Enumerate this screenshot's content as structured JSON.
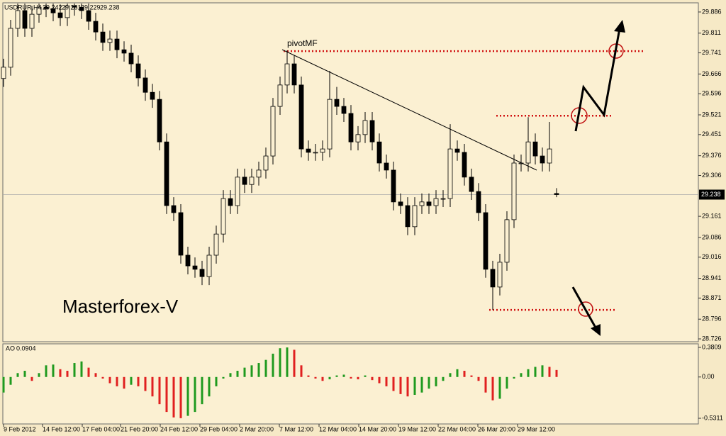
{
  "chart_data": {
    "type": "candlestick",
    "symbol": "USDRUR,H4",
    "annotation": "Masterforex-V",
    "pivot_label": "pivotMF",
    "colors": {
      "background": "#fbf0d2",
      "candle": "#000000",
      "level": "#d01010",
      "annotation": "#b01212",
      "pivot": "#1e9a1e"
    },
    "open": [
      29.65,
      29.69,
      29.828,
      29.891,
      29.828,
      29.878,
      29.903,
      29.898,
      29.883,
      29.866,
      29.908,
      29.903,
      29.891,
      29.853,
      29.815,
      29.778,
      29.79,
      29.752,
      29.74,
      29.702,
      29.652,
      29.601,
      29.576,
      29.425,
      29.199,
      29.174,
      29.023,
      28.985,
      28.973,
      28.947,
      29.023,
      29.098,
      29.224,
      29.199,
      29.3,
      29.274,
      29.3,
      29.325,
      29.375,
      29.551,
      29.627,
      29.702,
      29.627,
      29.4,
      29.388,
      29.388,
      29.4,
      29.576,
      29.551,
      29.526,
      29.425,
      29.451,
      29.501,
      29.425,
      29.35,
      29.325,
      29.212,
      29.199,
      29.124,
      29.199,
      29.212,
      29.199,
      29.224,
      29.224,
      29.4,
      29.388,
      29.3,
      29.249,
      29.174,
      28.973,
      28.91,
      28.998,
      29.149,
      29.35,
      29.35,
      29.425,
      29.375,
      29.35,
      29.242
    ],
    "high": [
      29.72,
      29.858,
      29.921,
      29.921,
      29.908,
      29.933,
      29.933,
      29.928,
      29.913,
      29.938,
      29.938,
      29.933,
      29.921,
      29.883,
      29.845,
      29.82,
      29.82,
      29.782,
      29.77,
      29.732,
      29.682,
      29.631,
      29.606,
      29.455,
      29.229,
      29.204,
      29.053,
      29.015,
      29.003,
      29.053,
      29.128,
      29.254,
      29.254,
      29.33,
      29.33,
      29.33,
      29.355,
      29.405,
      29.581,
      29.657,
      29.75,
      29.732,
      29.657,
      29.43,
      29.418,
      29.43,
      29.677,
      29.62,
      29.581,
      29.556,
      29.481,
      29.531,
      29.531,
      29.455,
      29.38,
      29.355,
      29.242,
      29.229,
      29.229,
      29.242,
      29.242,
      29.254,
      29.254,
      29.488,
      29.43,
      29.418,
      29.33,
      29.279,
      29.204,
      29.003,
      29.028,
      29.179,
      29.38,
      29.38,
      29.513,
      29.455,
      29.405,
      29.496,
      29.261
    ],
    "low": [
      29.62,
      29.66,
      29.798,
      29.798,
      29.798,
      29.848,
      29.868,
      29.853,
      29.836,
      29.836,
      29.873,
      29.861,
      29.823,
      29.785,
      29.748,
      29.748,
      29.722,
      29.71,
      29.672,
      29.622,
      29.571,
      29.546,
      29.395,
      29.169,
      29.144,
      28.993,
      28.955,
      28.943,
      28.917,
      28.917,
      28.993,
      29.068,
      29.169,
      29.169,
      29.244,
      29.244,
      29.27,
      29.295,
      29.345,
      29.521,
      29.597,
      29.597,
      29.37,
      29.358,
      29.358,
      29.358,
      29.37,
      29.521,
      29.496,
      29.395,
      29.395,
      29.421,
      29.395,
      29.32,
      29.295,
      29.182,
      29.169,
      29.094,
      29.094,
      29.169,
      29.169,
      29.169,
      29.194,
      29.194,
      29.358,
      29.27,
      29.219,
      29.144,
      28.943,
      28.829,
      28.88,
      28.968,
      29.119,
      29.32,
      29.32,
      29.345,
      29.32,
      29.32,
      29.229
    ],
    "close": [
      29.69,
      29.828,
      29.891,
      29.828,
      29.878,
      29.903,
      29.898,
      29.883,
      29.866,
      29.908,
      29.903,
      29.891,
      29.853,
      29.815,
      29.778,
      29.79,
      29.752,
      29.74,
      29.702,
      29.652,
      29.601,
      29.576,
      29.425,
      29.199,
      29.174,
      29.023,
      28.985,
      28.973,
      28.947,
      29.023,
      29.098,
      29.224,
      29.199,
      29.3,
      29.274,
      29.3,
      29.325,
      29.375,
      29.551,
      29.627,
      29.702,
      29.627,
      29.4,
      29.388,
      29.388,
      29.4,
      29.576,
      29.551,
      29.526,
      29.425,
      29.451,
      29.501,
      29.425,
      29.35,
      29.325,
      29.212,
      29.199,
      29.124,
      29.199,
      29.212,
      29.199,
      29.224,
      29.224,
      29.4,
      29.388,
      29.3,
      29.249,
      29.174,
      28.973,
      28.91,
      28.998,
      29.149,
      29.35,
      29.35,
      29.425,
      29.375,
      29.35,
      29.4,
      29.238
    ],
    "ylim": [
      28.716,
      29.916
    ],
    "yticks": [
      29.886,
      29.811,
      29.741,
      29.666,
      29.596,
      29.521,
      29.451,
      29.376,
      29.306,
      29.161,
      29.086,
      29.016,
      28.941,
      28.871,
      28.796,
      28.726
    ],
    "levels": [
      29.747,
      29.518,
      28.829
    ],
    "x_labels": [
      {
        "value": 0,
        "label": "9 Feb 2012"
      },
      {
        "value": 5.5,
        "label": "14 Feb 12:00"
      },
      {
        "value": 11.1,
        "label": "17 Feb 04:00"
      },
      {
        "value": 16.5,
        "label": "21 Feb 20:00"
      },
      {
        "value": 22.1,
        "label": "24 Feb 12:00"
      },
      {
        "value": 27.7,
        "label": "29 Feb 04:00"
      },
      {
        "value": 33.3,
        "label": "2 Mar 20:00"
      },
      {
        "value": 38.9,
        "label": "7 Mar 12:00"
      },
      {
        "value": 44.5,
        "label": "12 Mar 04:00"
      },
      {
        "value": 50.1,
        "label": "14 Mar 20:00"
      },
      {
        "value": 55.7,
        "label": "19 Mar 12:00"
      },
      {
        "value": 61.3,
        "label": "22 Mar 04:00"
      },
      {
        "value": 66.9,
        "label": "26 Mar 20:00"
      },
      {
        "value": 72.5,
        "label": "29 Mar 12:00"
      }
    ],
    "indicator": {
      "name": "AO",
      "up_color": "#1f9a1f",
      "down_color": "#e02020",
      "values": [
        -0.2,
        -0.1,
        0.05,
        0.08,
        -0.05,
        0.05,
        0.15,
        0.16,
        0.1,
        0.08,
        0.18,
        0.2,
        0.12,
        0.05,
        -0.02,
        -0.08,
        -0.12,
        -0.15,
        -0.1,
        -0.12,
        -0.18,
        -0.25,
        -0.35,
        -0.45,
        -0.52,
        -0.53,
        -0.5,
        -0.45,
        -0.35,
        -0.25,
        -0.12,
        -0.02,
        0.05,
        0.08,
        0.12,
        0.15,
        0.18,
        0.22,
        0.3,
        0.37,
        0.38,
        0.35,
        0.15,
        0.02,
        -0.02,
        -0.05,
        -0.03,
        0.02,
        0.03,
        -0.02,
        -0.03,
        0.02,
        -0.04,
        -0.08,
        -0.12,
        -0.18,
        -0.22,
        -0.25,
        -0.23,
        -0.2,
        -0.15,
        -0.12,
        -0.05,
        0.05,
        0.1,
        0.08,
        0.02,
        -0.05,
        -0.2,
        -0.3,
        -0.28,
        -0.15,
        -0.02,
        0.05,
        0.1,
        0.13,
        0.15,
        0.13,
        0.0904
      ],
      "ylim": [
        -0.6041,
        0.4174
      ],
      "yticks": [
        0.3809,
        {
          "value": 0,
          "label": "0.00"
        },
        -0.5311
      ]
    }
  }
}
